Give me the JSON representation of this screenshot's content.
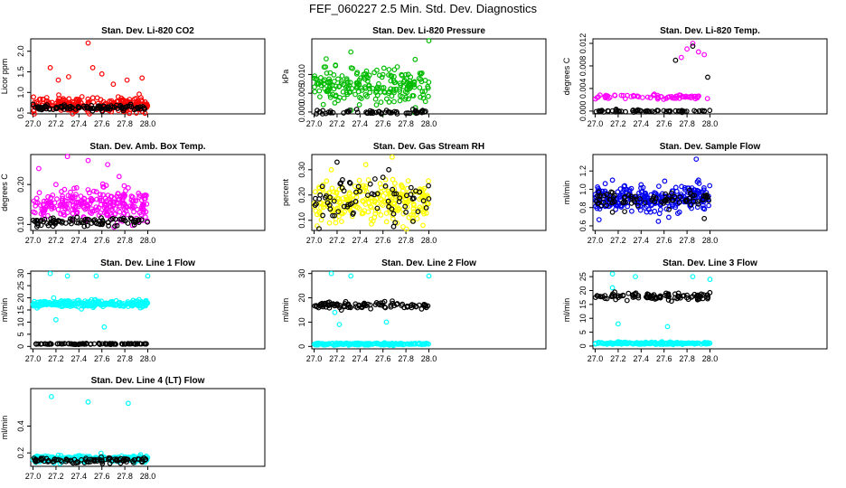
{
  "title": "FEF_060227  2.5 Min. Std. Dev. Diagnostics",
  "chart_data": [
    {
      "type": "scatter",
      "title": "Stan. Dev. Li-820 CO2",
      "ylabel": "Licor ppm",
      "xlim": [
        26.98,
        29.02
      ],
      "ylim": [
        0.48,
        2.3
      ],
      "xticks": [
        "27.0",
        "27.2",
        "27.4",
        "27.6",
        "27.8",
        "28.0"
      ],
      "yticks": [
        "0.5",
        "1.0",
        "1.5",
        "2.0"
      ],
      "series": [
        {
          "color": "#ff0000",
          "center": 0.7,
          "spread": 0.09,
          "n": 240,
          "outliers": [
            [
              27.15,
              1.6
            ],
            [
              27.22,
              1.3
            ],
            [
              27.31,
              1.38
            ],
            [
              27.48,
              2.2
            ],
            [
              27.52,
              1.6
            ],
            [
              27.6,
              1.45
            ],
            [
              27.7,
              1.2
            ],
            [
              27.82,
              1.3
            ],
            [
              27.95,
              1.35
            ]
          ]
        },
        {
          "color": "#000000",
          "center": 0.63,
          "spread": 0.03,
          "n": 100,
          "outliers": []
        }
      ]
    },
    {
      "type": "scatter",
      "title": "Stan. Dev. Li-820 Pressure",
      "ylabel": "kPa",
      "xlim": [
        26.98,
        29.02
      ],
      "ylim": [
        -0.0005,
        0.0195
      ],
      "xticks": [
        "27.0",
        "27.2",
        "27.4",
        "27.6",
        "27.8",
        "28.0"
      ],
      "yticks": [
        "0.000",
        "0.005",
        "0.010"
      ],
      "series": [
        {
          "color": "#00bb00",
          "center": 0.0065,
          "spread": 0.0025,
          "n": 220,
          "outliers": [
            [
              27.32,
              0.016
            ],
            [
              27.88,
              0.014
            ],
            [
              28.0,
              0.019
            ],
            [
              27.1,
              0.012
            ]
          ]
        },
        {
          "color": "#000000",
          "center": 0.0,
          "spread": 0.0003,
          "n": 60,
          "outliers": []
        }
      ]
    },
    {
      "type": "scatter",
      "title": "Stan. Dev. Li-820 Temp.",
      "ylabel": "degrees C",
      "xlim": [
        26.98,
        29.02
      ],
      "ylim": [
        -0.0005,
        0.0128
      ],
      "xticks": [
        "27.0",
        "27.2",
        "27.4",
        "27.6",
        "27.8",
        "28.0"
      ],
      "yticks": [
        "0.000",
        "0.004",
        "0.008",
        "0.012"
      ],
      "series": [
        {
          "color": "#ff00ff",
          "center": 0.0025,
          "spread": 0.0002,
          "n": 70,
          "outliers": [
            [
              27.8,
              0.011
            ],
            [
              27.85,
              0.012
            ],
            [
              27.9,
              0.0105
            ],
            [
              27.75,
              0.0095
            ],
            [
              27.95,
              0.01
            ]
          ]
        },
        {
          "color": "#000000",
          "center": 0.0,
          "spread": 0.0001,
          "n": 60,
          "outliers": [
            [
              27.7,
              0.009
            ],
            [
              27.85,
              0.0115
            ],
            [
              27.98,
              0.006
            ]
          ]
        }
      ]
    },
    {
      "type": "scatter",
      "title": "Stan. Dev. Amb. Box Temp.",
      "ylabel": "degrees C",
      "xlim": [
        26.98,
        29.02
      ],
      "ylim": [
        0.085,
        0.275
      ],
      "xticks": [
        "27.0",
        "27.2",
        "27.4",
        "27.6",
        "27.8",
        "28.0"
      ],
      "yticks": [
        "0.10",
        "0.20"
      ],
      "series": [
        {
          "color": "#ff00ff",
          "center": 0.15,
          "spread": 0.02,
          "n": 260,
          "outliers": [
            [
              27.3,
              0.27
            ],
            [
              27.48,
              0.26
            ],
            [
              27.65,
              0.25
            ],
            [
              27.05,
              0.24
            ],
            [
              27.75,
              0.22
            ],
            [
              27.2,
              0.2
            ]
          ]
        },
        {
          "color": "#000000",
          "center": 0.105,
          "spread": 0.006,
          "n": 90,
          "outliers": []
        }
      ]
    },
    {
      "type": "scatter",
      "title": "Stan. Dev. Gas Stream RH",
      "ylabel": "percent",
      "xlim": [
        26.98,
        29.02
      ],
      "ylim": [
        0.06,
        0.36
      ],
      "xticks": [
        "27.0",
        "27.2",
        "27.4",
        "27.6",
        "27.8",
        "28.0"
      ],
      "yticks": [
        "0.10",
        "0.20",
        "0.30"
      ],
      "series": [
        {
          "color": "#ffff00",
          "center": 0.17,
          "spread": 0.04,
          "n": 260,
          "outliers": [
            [
              27.68,
              0.35
            ],
            [
              27.45,
              0.32
            ],
            [
              27.15,
              0.3
            ]
          ]
        },
        {
          "color": "#000000",
          "center": 0.18,
          "spread": 0.04,
          "n": 70,
          "outliers": [
            [
              27.2,
              0.33
            ],
            [
              27.65,
              0.3
            ],
            [
              27.6,
              0.27
            ]
          ]
        }
      ]
    },
    {
      "type": "scatter",
      "title": "Stan. Dev. Sample Flow",
      "ylabel": "ml/min",
      "xlim": [
        26.98,
        29.02
      ],
      "ylim": [
        0.55,
        1.38
      ],
      "xticks": [
        "27.0",
        "27.2",
        "27.4",
        "27.6",
        "27.8",
        "28.0"
      ],
      "yticks": [
        "0.6",
        "0.8",
        "1.0",
        "1.2"
      ],
      "series": [
        {
          "color": "#0000ee",
          "center": 0.9,
          "spread": 0.07,
          "n": 260,
          "outliers": [
            [
              27.88,
              1.33
            ],
            [
              27.15,
              1.1
            ],
            [
              27.4,
              1.05
            ],
            [
              27.55,
              0.65
            ],
            [
              27.9,
              1.1
            ]
          ]
        },
        {
          "color": "#000000",
          "center": 0.88,
          "spread": 0.05,
          "n": 80,
          "outliers": [
            [
              27.15,
              0.75
            ],
            [
              27.95,
              0.68
            ]
          ]
        }
      ]
    },
    {
      "type": "scatter",
      "title": "Stan. Dev. Line 1 Flow",
      "ylabel": "ml/min",
      "xlim": [
        26.98,
        29.02
      ],
      "ylim": [
        -1,
        31
      ],
      "xticks": [
        "27.0",
        "27.2",
        "27.4",
        "27.6",
        "27.8",
        "28.0"
      ],
      "yticks": [
        "0",
        "5",
        "10",
        "15",
        "20",
        "25",
        "30"
      ],
      "series": [
        {
          "color": "#00ffff",
          "center": 17.5,
          "spread": 0.7,
          "n": 260,
          "outliers": [
            [
              27.15,
              30
            ],
            [
              27.3,
              29
            ],
            [
              27.55,
              29
            ],
            [
              27.62,
              8
            ],
            [
              27.2,
              11
            ],
            [
              27.18,
              20
            ],
            [
              28.0,
              29
            ]
          ]
        },
        {
          "color": "#000000",
          "center": 1.0,
          "spread": 0.1,
          "n": 90,
          "outliers": []
        }
      ]
    },
    {
      "type": "scatter",
      "title": "Stan. Dev. Line 2 Flow",
      "ylabel": "ml/min",
      "xlim": [
        26.98,
        29.02
      ],
      "ylim": [
        -1,
        31
      ],
      "xticks": [
        "27.0",
        "27.2",
        "27.4",
        "27.6",
        "27.8",
        "28.0"
      ],
      "yticks": [
        "0",
        "10",
        "20",
        "30"
      ],
      "series": [
        {
          "color": "#00ffff",
          "center": 1.0,
          "spread": 0.2,
          "n": 200,
          "outliers": [
            [
              27.15,
              30
            ],
            [
              27.32,
              29
            ],
            [
              27.22,
              9
            ],
            [
              27.63,
              10
            ],
            [
              27.18,
              14
            ],
            [
              28.0,
              29
            ]
          ]
        },
        {
          "color": "#000000",
          "center": 17.0,
          "spread": 0.6,
          "n": 100,
          "outliers": []
        }
      ]
    },
    {
      "type": "scatter",
      "title": "Stan. Dev. Line 3 Flow",
      "ylabel": "ml/min",
      "xlim": [
        26.98,
        29.02
      ],
      "ylim": [
        -1,
        27
      ],
      "xticks": [
        "27.0",
        "27.2",
        "27.4",
        "27.6",
        "27.8",
        "28.0"
      ],
      "yticks": [
        "0",
        "5",
        "10",
        "15",
        "20",
        "25"
      ],
      "series": [
        {
          "color": "#00ffff",
          "center": 1.0,
          "spread": 0.2,
          "n": 200,
          "outliers": [
            [
              27.15,
              26
            ],
            [
              27.35,
              25
            ],
            [
              27.63,
              7
            ],
            [
              27.15,
              21
            ],
            [
              27.2,
              8
            ],
            [
              27.85,
              25
            ],
            [
              28.0,
              24
            ]
          ]
        },
        {
          "color": "#000000",
          "center": 18.0,
          "spread": 0.6,
          "n": 100,
          "outliers": []
        }
      ]
    },
    {
      "type": "scatter",
      "title": "Stan. Dev. Line 4 (LT) Flow",
      "ylabel": "ml/min",
      "xlim": [
        26.98,
        29.02
      ],
      "ylim": [
        0.1,
        0.68
      ],
      "xticks": [
        "27.0",
        "27.2",
        "27.4",
        "27.6",
        "27.8",
        "28.0"
      ],
      "yticks": [
        "0.2",
        "0.4"
      ],
      "series": [
        {
          "color": "#00ffff",
          "center": 0.155,
          "spread": 0.012,
          "n": 260,
          "outliers": [
            [
              27.16,
              0.62
            ],
            [
              27.48,
              0.58
            ],
            [
              27.83,
              0.57
            ]
          ]
        },
        {
          "color": "#000000",
          "center": 0.145,
          "spread": 0.01,
          "n": 90,
          "outliers": []
        }
      ]
    }
  ]
}
